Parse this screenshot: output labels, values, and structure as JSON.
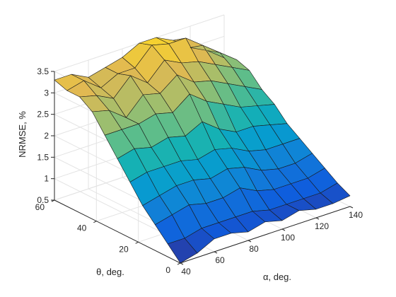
{
  "chart_data": {
    "type": "surface",
    "zlabel": "NRMSE, %",
    "xlabel": "α, deg.",
    "ylabel": "θ, deg.",
    "x": [
      40,
      50,
      60,
      70,
      80,
      90,
      100,
      110,
      120,
      130,
      140
    ],
    "y": [
      0,
      6,
      12,
      18,
      24,
      30,
      36,
      42,
      48,
      54,
      60
    ],
    "x_ticks": [
      "40",
      "60",
      "80",
      "100",
      "120",
      "140"
    ],
    "y_ticks": [
      "0",
      "20",
      "40",
      "60"
    ],
    "z_ticks": [
      "0.5",
      "1",
      "1.5",
      "2",
      "2.5",
      "3",
      "3.5"
    ],
    "xlim": [
      40,
      140
    ],
    "ylim": [
      0,
      60
    ],
    "zlim": [
      0.5,
      3.5
    ],
    "grid": true,
    "colormap": "parula",
    "z": [
      [
        0.5,
        0.6,
        0.8,
        0.8,
        0.7,
        0.8,
        0.7,
        0.8,
        0.7,
        0.7,
        0.75
      ],
      [
        0.8,
        0.8,
        0.9,
        0.9,
        0.9,
        0.9,
        0.8,
        0.8,
        0.8,
        0.8,
        0.9
      ],
      [
        1.1,
        1.2,
        1.3,
        1.2,
        1.2,
        1.3,
        1.1,
        1.0,
        1.0,
        1.0,
        1.1
      ],
      [
        1.4,
        1.5,
        1.6,
        1.6,
        1.5,
        1.6,
        1.5,
        1.3,
        1.2,
        1.2,
        1.3
      ],
      [
        1.8,
        1.9,
        1.9,
        1.9,
        1.8,
        1.9,
        1.8,
        1.6,
        1.5,
        1.5,
        1.5
      ],
      [
        2.2,
        2.3,
        2.2,
        2.3,
        2.2,
        2.4,
        2.1,
        1.9,
        1.9,
        1.8,
        1.7
      ],
      [
        2.6,
        2.6,
        2.6,
        2.7,
        2.6,
        2.9,
        2.6,
        2.4,
        2.2,
        2.1,
        2.0
      ],
      [
        3.0,
        2.9,
        2.6,
        3.0,
        2.9,
        3.2,
        2.9,
        2.8,
        2.6,
        2.4,
        2.2
      ],
      [
        3.2,
        3.1,
        2.9,
        3.3,
        3.0,
        3.4,
        3.2,
        3.1,
        2.9,
        2.7,
        2.5
      ],
      [
        3.2,
        3.3,
        3.0,
        3.2,
        3.2,
        3.6,
        3.5,
        3.5,
        3.2,
        2.9,
        2.6
      ],
      [
        3.3,
        3.3,
        3.1,
        3.2,
        3.3,
        3.5,
        3.5,
        3.3,
        3.0,
        2.8,
        2.5
      ]
    ]
  }
}
